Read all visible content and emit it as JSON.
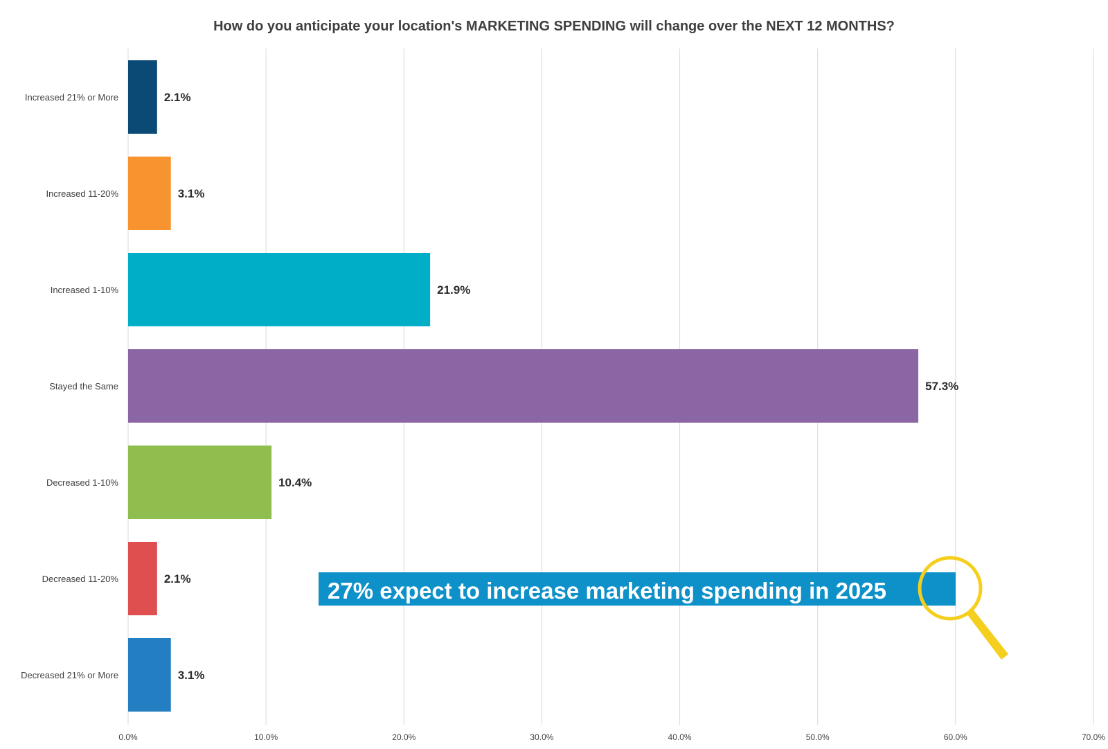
{
  "chart_data": {
    "type": "bar",
    "orientation": "horizontal",
    "title": "How do you anticipate your location's MARKETING SPENDING will change over the NEXT 12 MONTHS?",
    "categories": [
      "Increased 21% or More",
      "Increased 11-20%",
      "Increased 1-10%",
      "Stayed the Same",
      "Decreased 1-10%",
      "Decreased 11-20%",
      "Decreased 21% or More"
    ],
    "values": [
      2.1,
      3.1,
      21.9,
      57.3,
      10.4,
      2.1,
      3.1
    ],
    "data_labels": [
      "2.1%",
      "3.1%",
      "21.9%",
      "57.3%",
      "10.4%",
      "2.1%",
      "3.1%"
    ],
    "colors": [
      "#0b4a75",
      "#f7942f",
      "#00aec7",
      "#8b66a5",
      "#8fbe4f",
      "#df4f4f",
      "#237fc1"
    ],
    "xlim": [
      0,
      70
    ],
    "x_ticks": [
      "0.0%",
      "10.0%",
      "20.0%",
      "30.0%",
      "40.0%",
      "50.0%",
      "60.0%",
      "70.0%"
    ],
    "grid": true,
    "legend": "none",
    "annotation": {
      "text": "27% expect to increase marketing spending in 2025",
      "background_color": "#0e90c9",
      "text_color": "#ffffff",
      "icon": "magnifying-glass-icon",
      "icon_color": "#f5cf1e"
    }
  }
}
